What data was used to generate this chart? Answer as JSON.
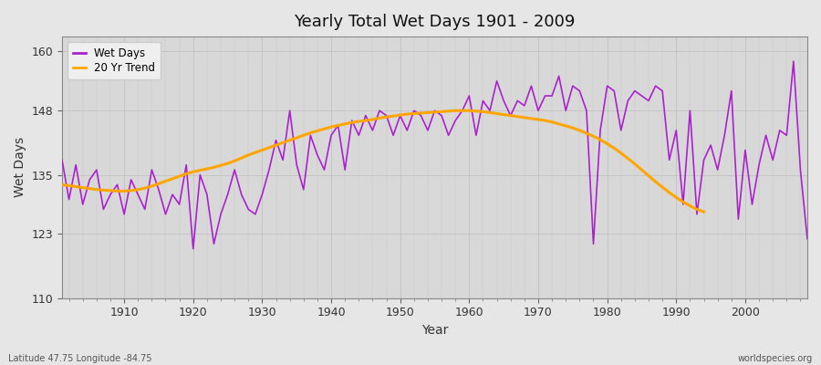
{
  "title": "Yearly Total Wet Days 1901 - 2009",
  "xlabel": "Year",
  "ylabel": "Wet Days",
  "subtitle_left": "Latitude 47.75 Longitude -84.75",
  "subtitle_right": "worldspecies.org",
  "line_color": "#AA22CC",
  "trend_color": "#FFA500",
  "fig_bg_color": "#E6E6E6",
  "plot_bg_color": "#D8D8D8",
  "ylim": [
    110,
    163
  ],
  "yticks": [
    110,
    123,
    135,
    148,
    160
  ],
  "xlim": [
    1901,
    2009
  ],
  "xticks": [
    1910,
    1920,
    1930,
    1940,
    1950,
    1960,
    1970,
    1980,
    1990,
    2000
  ],
  "years": [
    1901,
    1902,
    1903,
    1904,
    1905,
    1906,
    1907,
    1908,
    1909,
    1910,
    1911,
    1912,
    1913,
    1914,
    1915,
    1916,
    1917,
    1918,
    1919,
    1920,
    1921,
    1922,
    1923,
    1924,
    1925,
    1926,
    1927,
    1928,
    1929,
    1930,
    1931,
    1932,
    1933,
    1934,
    1935,
    1936,
    1937,
    1938,
    1939,
    1940,
    1941,
    1942,
    1943,
    1944,
    1945,
    1946,
    1947,
    1948,
    1949,
    1950,
    1951,
    1952,
    1953,
    1954,
    1955,
    1956,
    1957,
    1958,
    1959,
    1960,
    1961,
    1962,
    1963,
    1964,
    1965,
    1966,
    1967,
    1968,
    1969,
    1970,
    1971,
    1972,
    1973,
    1974,
    1975,
    1976,
    1977,
    1978,
    1979,
    1980,
    1981,
    1982,
    1983,
    1984,
    1985,
    1986,
    1987,
    1988,
    1989,
    1990,
    1991,
    1992,
    1993,
    1994,
    1995,
    1996,
    1997,
    1998,
    1999,
    2000,
    2001,
    2002,
    2003,
    2004,
    2005,
    2006,
    2007,
    2008,
    2009
  ],
  "wet_days": [
    138,
    130,
    137,
    129,
    134,
    136,
    128,
    131,
    133,
    127,
    134,
    131,
    128,
    136,
    132,
    127,
    131,
    129,
    137,
    120,
    135,
    131,
    121,
    127,
    131,
    136,
    131,
    128,
    127,
    131,
    136,
    142,
    138,
    148,
    137,
    132,
    143,
    139,
    136,
    143,
    145,
    136,
    146,
    143,
    147,
    144,
    148,
    147,
    143,
    147,
    144,
    148,
    147,
    144,
    148,
    147,
    143,
    146,
    148,
    151,
    143,
    150,
    148,
    154,
    150,
    147,
    150,
    149,
    153,
    148,
    151,
    151,
    155,
    148,
    153,
    152,
    148,
    121,
    144,
    153,
    152,
    144,
    150,
    152,
    151,
    150,
    153,
    152,
    138,
    144,
    129,
    148,
    127,
    138,
    141,
    136,
    143,
    152,
    126,
    140,
    129,
    137,
    143,
    138,
    144,
    143,
    158,
    136,
    122
  ],
  "trend_years": [
    1901,
    1902,
    1903,
    1904,
    1905,
    1906,
    1907,
    1908,
    1909,
    1910,
    1911,
    1912,
    1913,
    1914,
    1915,
    1916,
    1917,
    1918,
    1919,
    1920,
    1921,
    1922,
    1923,
    1924,
    1925,
    1926,
    1927,
    1928,
    1929,
    1930,
    1931,
    1932,
    1933,
    1934,
    1935,
    1936,
    1937,
    1938,
    1939,
    1940,
    1941,
    1942,
    1943,
    1944,
    1945,
    1946,
    1947,
    1948,
    1949,
    1950,
    1951,
    1952,
    1953,
    1954,
    1955,
    1956,
    1957,
    1958,
    1959,
    1960,
    1961,
    1962,
    1963,
    1964,
    1965,
    1966,
    1967,
    1968,
    1969,
    1970,
    1971,
    1972,
    1973,
    1974,
    1975,
    1976,
    1977,
    1978,
    1979,
    1980,
    1981,
    1982,
    1983,
    1984,
    1985,
    1986,
    1987,
    1988,
    1989,
    1990,
    1991,
    1992,
    1993,
    1994
  ],
  "trend_vals": [
    133.0,
    132.8,
    132.6,
    132.4,
    132.2,
    132.0,
    131.9,
    131.8,
    131.7,
    131.7,
    131.8,
    132.0,
    132.3,
    132.7,
    133.2,
    133.7,
    134.2,
    134.7,
    135.2,
    135.6,
    135.9,
    136.2,
    136.5,
    136.9,
    137.3,
    137.8,
    138.4,
    139.0,
    139.5,
    140.0,
    140.5,
    141.0,
    141.5,
    142.0,
    142.5,
    143.0,
    143.5,
    143.9,
    144.3,
    144.7,
    145.0,
    145.3,
    145.6,
    145.8,
    146.0,
    146.2,
    146.5,
    146.7,
    146.9,
    147.1,
    147.3,
    147.4,
    147.5,
    147.6,
    147.7,
    147.8,
    147.9,
    148.0,
    148.0,
    148.0,
    147.9,
    147.8,
    147.6,
    147.4,
    147.2,
    147.0,
    146.8,
    146.6,
    146.4,
    146.2,
    146.0,
    145.7,
    145.3,
    144.9,
    144.5,
    144.0,
    143.4,
    142.8,
    142.1,
    141.3,
    140.4,
    139.4,
    138.3,
    137.2,
    136.0,
    134.8,
    133.6,
    132.5,
    131.4,
    130.4,
    129.5,
    128.7,
    128.0,
    127.5
  ]
}
